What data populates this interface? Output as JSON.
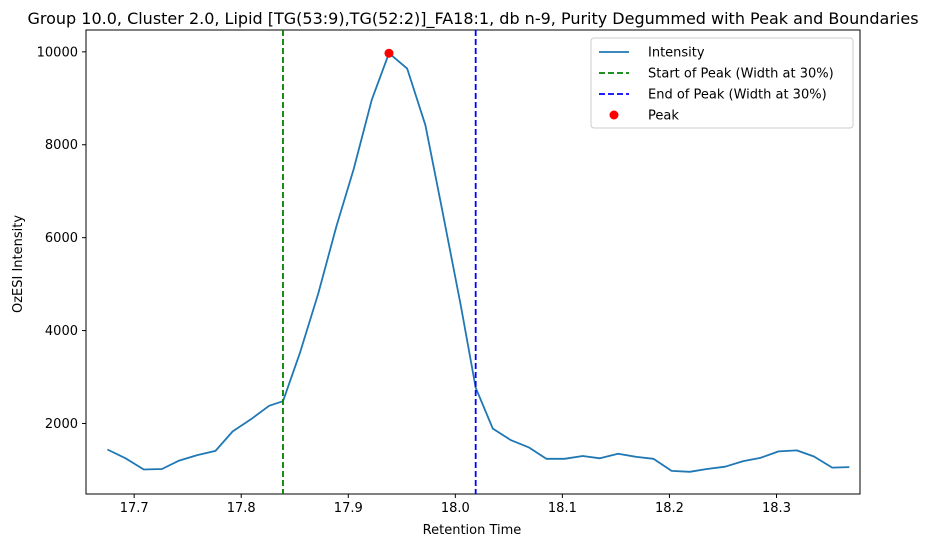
{
  "chart_data": {
    "type": "line",
    "title": "Group 10.0, Cluster 2.0, Lipid [TG(53:9),TG(52:2)]_FA18:1, db n-9, Purity Degummed with Peak and Boundaries",
    "xlabel": "Retention Time",
    "ylabel": "OzESI Intensity",
    "xlim": [
      17.655,
      18.378
    ],
    "ylim": [
      482,
      10470
    ],
    "xticks": [
      17.7,
      17.8,
      17.9,
      18.0,
      18.1,
      18.2,
      18.3
    ],
    "xtick_labels": [
      "17.7",
      "17.8",
      "17.9",
      "18.0",
      "18.1",
      "18.2",
      "18.3"
    ],
    "yticks": [
      2000,
      4000,
      6000,
      8000,
      10000
    ],
    "ytick_labels": [
      "2000",
      "4000",
      "6000",
      "8000",
      "10000"
    ],
    "grid": false,
    "series": [
      {
        "name": "Intensity",
        "kind": "line",
        "color": "#1f77b4",
        "x": [
          17.675,
          17.692,
          17.709,
          17.726,
          17.742,
          17.759,
          17.776,
          17.792,
          17.809,
          17.826,
          17.839,
          17.855,
          17.872,
          17.889,
          17.905,
          17.922,
          17.938,
          17.955,
          17.972,
          17.988,
          18.005,
          18.019,
          18.035,
          18.052,
          18.069,
          18.085,
          18.102,
          18.119,
          18.135,
          18.152,
          18.169,
          18.185,
          18.202,
          18.219,
          18.235,
          18.252,
          18.269,
          18.285,
          18.302,
          18.319,
          18.335,
          18.352,
          18.368
        ],
        "y": [
          1440,
          1250,
          1010,
          1020,
          1200,
          1320,
          1410,
          1830,
          2090,
          2380,
          2480,
          3530,
          4800,
          6250,
          7470,
          8970,
          9970,
          9640,
          8420,
          6560,
          4550,
          2770,
          1890,
          1640,
          1480,
          1240,
          1240,
          1300,
          1250,
          1350,
          1280,
          1240,
          980,
          960,
          1020,
          1070,
          1190,
          1260,
          1400,
          1420,
          1290,
          1050,
          1060
        ]
      }
    ],
    "vlines": [
      {
        "name": "Start of Peak (Width at 30%)",
        "x": 17.839,
        "color": "#008000",
        "style": "dashed"
      },
      {
        "name": "End of Peak (Width at 30%)",
        "x": 18.019,
        "color": "#0000ff",
        "style": "dashed"
      }
    ],
    "points": [
      {
        "name": "Peak",
        "x": 17.938,
        "y": 9970,
        "color": "#ff0000"
      }
    ],
    "legend": {
      "position": "top-right",
      "entries": [
        {
          "label": "Intensity",
          "kind": "line",
          "color": "#1f77b4"
        },
        {
          "label": "Start of Peak (Width at 30%)",
          "kind": "dashed",
          "color": "#008000"
        },
        {
          "label": "End of Peak (Width at 30%)",
          "kind": "dashed",
          "color": "#0000ff"
        },
        {
          "label": "Peak",
          "kind": "marker",
          "color": "#ff0000"
        }
      ]
    }
  }
}
